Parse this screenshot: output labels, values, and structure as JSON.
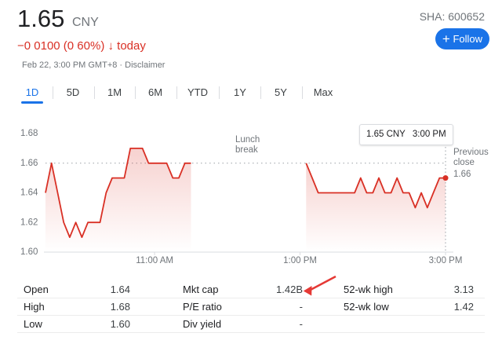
{
  "header": {
    "price": "1.65",
    "currency": "CNY",
    "change": "−0 0100 (0 60%)",
    "arrow": "↓",
    "period": "today",
    "timestamp": "Feb 22, 3:00 PM GMT+8 · Disclaimer",
    "ticker": "SHA: 600652",
    "follow": "Follow"
  },
  "tabs": [
    "1D",
    "5D",
    "1M",
    "6M",
    "YTD",
    "1Y",
    "5Y",
    "Max"
  ],
  "chart_data": {
    "type": "line",
    "color": "#d93025",
    "x": [
      570,
      575,
      580,
      585,
      590,
      595,
      600,
      605,
      610,
      615,
      620,
      625,
      630,
      635,
      640,
      645,
      650,
      655,
      660,
      665,
      670,
      675,
      680,
      685,
      690,
      720,
      785,
      790,
      795,
      800,
      805,
      810,
      815,
      820,
      825,
      830,
      835,
      840,
      845,
      850,
      855,
      860,
      865,
      870,
      875,
      880,
      885,
      890,
      895,
      900
    ],
    "values": [
      1.64,
      1.66,
      1.64,
      1.62,
      1.61,
      1.62,
      1.61,
      1.62,
      1.62,
      1.62,
      1.64,
      1.65,
      1.65,
      1.65,
      1.67,
      1.67,
      1.67,
      1.66,
      1.66,
      1.66,
      1.66,
      1.65,
      1.65,
      1.66,
      1.66,
      null,
      1.66,
      1.65,
      1.64,
      1.64,
      1.64,
      1.64,
      1.64,
      1.64,
      1.64,
      1.65,
      1.64,
      1.64,
      1.65,
      1.64,
      1.64,
      1.65,
      1.64,
      1.64,
      1.63,
      1.64,
      1.63,
      1.64,
      1.65,
      1.65
    ],
    "xlim": [
      570,
      900
    ],
    "xticks": [
      {
        "value": 660,
        "label": "11:00 AM"
      },
      {
        "value": 780,
        "label": "1:00 PM"
      },
      {
        "value": 900,
        "label": "3:00 PM"
      }
    ],
    "ylim": [
      1.6,
      1.68
    ],
    "yticks": [
      {
        "value": 1.6,
        "label": "1.60"
      },
      1.62,
      1.64,
      1.66,
      1.68
    ],
    "previous_close": {
      "label": "Previous close",
      "value": 1.66
    },
    "annotation": "Lunch break",
    "tooltip": {
      "price": "1.65 CNY",
      "time": "3:00 PM"
    }
  },
  "stats": [
    [
      {
        "label": "Open",
        "value": "1.64"
      },
      {
        "label": "Mkt cap",
        "value": "1.42B"
      },
      {
        "label": "52-wk high",
        "value": "3.13"
      }
    ],
    [
      {
        "label": "High",
        "value": "1.68"
      },
      {
        "label": "P/E ratio",
        "value": "-"
      },
      {
        "label": "52-wk low",
        "value": "1.42"
      }
    ],
    [
      {
        "label": "Low",
        "value": "1.60"
      },
      {
        "label": "Div yield",
        "value": "-"
      }
    ]
  ]
}
